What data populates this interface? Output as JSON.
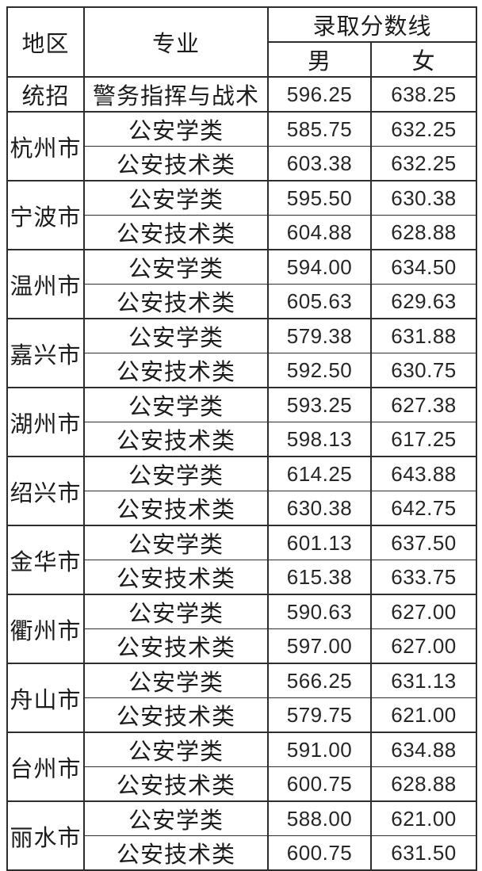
{
  "table": {
    "headers": {
      "region": "地区",
      "major": "专业",
      "score_group": "录取分数线",
      "male": "男",
      "female": "女"
    },
    "regions": [
      {
        "region": "统招",
        "rows": [
          [
            "警务指挥与战术",
            "596.25",
            "638.25"
          ]
        ]
      },
      {
        "region": "杭州市",
        "rows": [
          [
            "公安学类",
            "585.75",
            "632.25"
          ],
          [
            "公安技术类",
            "603.38",
            "632.25"
          ]
        ]
      },
      {
        "region": "宁波市",
        "rows": [
          [
            "公安学类",
            "595.50",
            "630.38"
          ],
          [
            "公安技术类",
            "604.88",
            "628.88"
          ]
        ]
      },
      {
        "region": "温州市",
        "rows": [
          [
            "公安学类",
            "594.00",
            "634.50"
          ],
          [
            "公安技术类",
            "605.63",
            "629.63"
          ]
        ]
      },
      {
        "region": "嘉兴市",
        "rows": [
          [
            "公安学类",
            "579.38",
            "631.88"
          ],
          [
            "公安技术类",
            "592.50",
            "630.75"
          ]
        ]
      },
      {
        "region": "湖州市",
        "rows": [
          [
            "公安学类",
            "593.25",
            "627.38"
          ],
          [
            "公安技术类",
            "598.13",
            "617.25"
          ]
        ]
      },
      {
        "region": "绍兴市",
        "rows": [
          [
            "公安学类",
            "614.25",
            "643.88"
          ],
          [
            "公安技术类",
            "630.38",
            "642.75"
          ]
        ]
      },
      {
        "region": "金华市",
        "rows": [
          [
            "公安学类",
            "601.13",
            "637.50"
          ],
          [
            "公安技术类",
            "615.38",
            "633.75"
          ]
        ]
      },
      {
        "region": "衢州市",
        "rows": [
          [
            "公安学类",
            "590.63",
            "627.00"
          ],
          [
            "公安技术类",
            "597.00",
            "627.00"
          ]
        ]
      },
      {
        "region": "舟山市",
        "rows": [
          [
            "公安学类",
            "566.25",
            "631.13"
          ],
          [
            "公安技术类",
            "579.75",
            "621.00"
          ]
        ]
      },
      {
        "region": "台州市",
        "rows": [
          [
            "公安学类",
            "591.00",
            "634.88"
          ],
          [
            "公安技术类",
            "600.75",
            "628.88"
          ]
        ]
      },
      {
        "region": "丽水市",
        "rows": [
          [
            "公安学类",
            "588.00",
            "621.00"
          ],
          [
            "公安技术类",
            "600.75",
            "631.50"
          ]
        ]
      }
    ],
    "colors": {
      "border": "#2d2d2d",
      "text": "#1c1c1c",
      "background": "#ffffff"
    }
  },
  "chart_data": {
    "type": "table",
    "columns": [
      "地区",
      "专业",
      "录取分数线 男",
      "录取分数线 女"
    ],
    "rows": [
      [
        "统招",
        "警务指挥与战术",
        596.25,
        638.25
      ],
      [
        "杭州市",
        "公安学类",
        585.75,
        632.25
      ],
      [
        "杭州市",
        "公安技术类",
        603.38,
        632.25
      ],
      [
        "宁波市",
        "公安学类",
        595.5,
        630.38
      ],
      [
        "宁波市",
        "公安技术类",
        604.88,
        628.88
      ],
      [
        "温州市",
        "公安学类",
        594.0,
        634.5
      ],
      [
        "温州市",
        "公安技术类",
        605.63,
        629.63
      ],
      [
        "嘉兴市",
        "公安学类",
        579.38,
        631.88
      ],
      [
        "嘉兴市",
        "公安技术类",
        592.5,
        630.75
      ],
      [
        "湖州市",
        "公安学类",
        593.25,
        627.38
      ],
      [
        "湖州市",
        "公安技术类",
        598.13,
        617.25
      ],
      [
        "绍兴市",
        "公安学类",
        614.25,
        643.88
      ],
      [
        "绍兴市",
        "公安技术类",
        630.38,
        642.75
      ],
      [
        "金华市",
        "公安学类",
        601.13,
        637.5
      ],
      [
        "金华市",
        "公安技术类",
        615.38,
        633.75
      ],
      [
        "衢州市",
        "公安学类",
        590.63,
        627.0
      ],
      [
        "衢州市",
        "公安技术类",
        597.0,
        627.0
      ],
      [
        "舟山市",
        "公安学类",
        566.25,
        631.13
      ],
      [
        "舟山市",
        "公安技术类",
        579.75,
        621.0
      ],
      [
        "台州市",
        "公安学类",
        591.0,
        634.88
      ],
      [
        "台州市",
        "公安技术类",
        600.75,
        628.88
      ],
      [
        "丽水市",
        "公安学类",
        588.0,
        621.0
      ],
      [
        "丽水市",
        "公安技术类",
        600.75,
        631.5
      ]
    ]
  }
}
